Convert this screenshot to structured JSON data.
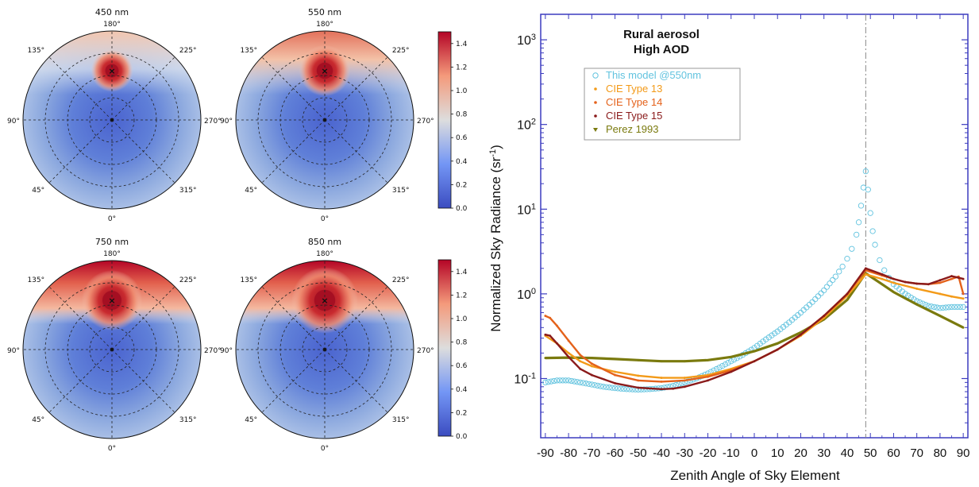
{
  "colors": {
    "cmap_low": "#3b4cc0",
    "cmap_mid": "#dddddd",
    "cmap_high": "#b40426",
    "plot_frame": "#3b3bbf",
    "this_model": "#62c3df",
    "cie13": "#f39a18",
    "cie14": "#e4621b",
    "cie15": "#8a1a1a",
    "perez": "#7a7a0e"
  },
  "polar_panels": [
    {
      "title": "450 nm",
      "angle_labels": {
        "top": "180°",
        "bottom": "0°",
        "left": "90°",
        "right": "270°",
        "tl": "135°",
        "tr": "225°",
        "bl": "45°",
        "br": "315°"
      }
    },
    {
      "title": "550 nm",
      "angle_labels": {
        "top": "180°",
        "bottom": "0°",
        "left": "90°",
        "right": "270°",
        "tl": "135°",
        "tr": "225°",
        "bl": "45°",
        "br": "315°"
      }
    },
    {
      "title": "750 nm",
      "angle_labels": {
        "top": "180°",
        "bottom": "0°",
        "left": "90°",
        "right": "270°",
        "tl": "135°",
        "tr": "225°",
        "bl": "45°",
        "br": "315°"
      }
    },
    {
      "title": "850 nm",
      "angle_labels": {
        "top": "180°",
        "bottom": "0°",
        "left": "90°",
        "right": "270°",
        "tl": "135°",
        "tr": "225°",
        "bl": "45°",
        "br": "315°"
      }
    }
  ],
  "colorbar": {
    "ticks": [
      "0.0",
      "0.2",
      "0.4",
      "0.6",
      "0.8",
      "1.0",
      "1.2",
      "1.4"
    ],
    "range": [
      0.0,
      1.5
    ]
  },
  "chart_data": {
    "type": "line",
    "title": "Rural aerosol\nHigh AOD",
    "xlabel": "Zenith Angle of Sky Element",
    "ylabel": "Normalized Sky Radiance (sr-1)",
    "ylabel_main": "Normalized Sky Radiance (sr",
    "ylabel_sup": "-1",
    "ylabel_close": ")",
    "xlim": [
      -92,
      92
    ],
    "ylim": [
      0.02,
      2000
    ],
    "yscale": "log",
    "x_ticks": [
      -90,
      -80,
      -70,
      -60,
      -50,
      -40,
      -30,
      -20,
      -10,
      0,
      10,
      20,
      30,
      40,
      50,
      60,
      70,
      80,
      90
    ],
    "y_ticks": [
      {
        "value": 0.1,
        "base": "10",
        "exp": "-1"
      },
      {
        "value": 1,
        "base": "10",
        "exp": "0"
      },
      {
        "value": 10,
        "base": "10",
        "exp": "1"
      },
      {
        "value": 100,
        "base": "10",
        "exp": "2"
      },
      {
        "value": 1000,
        "base": "10",
        "exp": "3"
      }
    ],
    "sun_position": 48,
    "legend_position": "upper-left",
    "series": [
      {
        "name": "This model @550nm",
        "marker": "circle",
        "color": "this_model",
        "x": [
          -90,
          -85,
          -80,
          -75,
          -70,
          -65,
          -60,
          -55,
          -50,
          -45,
          -40,
          -35,
          -30,
          -25,
          -20,
          -15,
          -10,
          -5,
          0,
          5,
          10,
          15,
          20,
          25,
          30,
          35,
          38,
          40,
          42,
          44,
          45,
          46,
          47,
          48,
          49,
          50,
          51,
          52,
          54,
          56,
          58,
          60,
          65,
          70,
          75,
          80,
          85,
          90
        ],
        "y": [
          0.09,
          0.095,
          0.095,
          0.09,
          0.085,
          0.08,
          0.077,
          0.075,
          0.074,
          0.075,
          0.077,
          0.082,
          0.09,
          0.1,
          0.115,
          0.135,
          0.16,
          0.19,
          0.23,
          0.29,
          0.36,
          0.46,
          0.6,
          0.8,
          1.1,
          1.6,
          2.1,
          2.6,
          3.4,
          5,
          7,
          11,
          18,
          28,
          17,
          9,
          5.5,
          3.8,
          2.5,
          1.9,
          1.55,
          1.3,
          1.0,
          0.82,
          0.72,
          0.68,
          0.7,
          0.7
        ]
      },
      {
        "name": "CIE Type 13",
        "marker": "dot",
        "color": "cie13",
        "x": [
          -90,
          -85,
          -80,
          -75,
          -70,
          -60,
          -50,
          -40,
          -30,
          -20,
          -10,
          0,
          10,
          20,
          30,
          40,
          48,
          55,
          60,
          70,
          80,
          85,
          90
        ],
        "y": [
          0.32,
          0.26,
          0.2,
          0.16,
          0.14,
          0.12,
          0.108,
          0.102,
          0.102,
          0.11,
          0.13,
          0.16,
          0.22,
          0.32,
          0.52,
          0.95,
          1.7,
          1.5,
          1.35,
          1.15,
          1.0,
          0.93,
          0.88
        ]
      },
      {
        "name": "CIE Type 14",
        "marker": "dot",
        "color": "cie14",
        "x": [
          -90,
          -88,
          -85,
          -80,
          -75,
          -70,
          -60,
          -50,
          -40,
          -30,
          -20,
          -10,
          0,
          10,
          20,
          30,
          40,
          48,
          55,
          60,
          65,
          70,
          75,
          80,
          85,
          88,
          90
        ],
        "y": [
          0.55,
          0.52,
          0.42,
          0.28,
          0.19,
          0.15,
          0.11,
          0.095,
          0.092,
          0.095,
          0.105,
          0.125,
          0.16,
          0.22,
          0.33,
          0.55,
          1.0,
          1.9,
          1.65,
          1.5,
          1.38,
          1.32,
          1.3,
          1.35,
          1.5,
          1.6,
          1.0
        ]
      },
      {
        "name": "CIE Type 15",
        "marker": "dot",
        "color": "cie15",
        "x": [
          -90,
          -88,
          -85,
          -80,
          -75,
          -70,
          -60,
          -50,
          -40,
          -35,
          -30,
          -20,
          -10,
          0,
          10,
          20,
          30,
          40,
          48,
          55,
          60,
          65,
          70,
          75,
          80,
          85,
          88,
          90
        ],
        "y": [
          0.33,
          0.32,
          0.26,
          0.18,
          0.13,
          0.11,
          0.088,
          0.078,
          0.075,
          0.076,
          0.08,
          0.095,
          0.12,
          0.16,
          0.22,
          0.33,
          0.55,
          1.0,
          2.0,
          1.7,
          1.5,
          1.38,
          1.32,
          1.3,
          1.45,
          1.62,
          1.55,
          1.5
        ]
      },
      {
        "name": "Perez 1993",
        "marker": "triangle-down",
        "color": "perez",
        "x": [
          -90,
          -80,
          -70,
          -60,
          -50,
          -40,
          -30,
          -20,
          -10,
          0,
          10,
          20,
          30,
          40,
          48,
          55,
          60,
          70,
          80,
          90
        ],
        "y": [
          0.175,
          0.177,
          0.175,
          0.17,
          0.165,
          0.16,
          0.16,
          0.165,
          0.18,
          0.21,
          0.26,
          0.35,
          0.5,
          0.85,
          1.75,
          1.3,
          1.05,
          0.75,
          0.55,
          0.4
        ]
      }
    ]
  }
}
